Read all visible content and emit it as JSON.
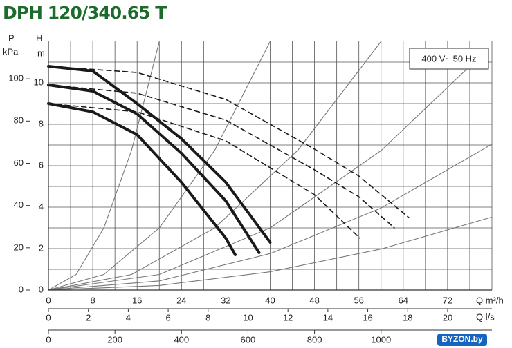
{
  "title": "DPH 120/340.65 T",
  "watermark": "BYZON.by",
  "chart_data": {
    "type": "line",
    "annotation": "400 V~ 50 Hz",
    "y_label": "H",
    "y_unit": "m",
    "y2_label": "P",
    "y2_unit": "kPa",
    "ylim": [
      0,
      12
    ],
    "yticks": [
      0,
      2,
      4,
      6,
      8,
      10
    ],
    "yminor": [
      1,
      3,
      5,
      7,
      9,
      11
    ],
    "y2lim": [
      0,
      117.7
    ],
    "y2ticks": [
      0,
      20,
      40,
      60,
      80,
      100
    ],
    "xlim": [
      0,
      80
    ],
    "xticks": [
      0,
      8,
      16,
      24,
      32,
      40,
      48,
      56,
      64,
      72
    ],
    "xminor": [
      4,
      12,
      20,
      28,
      36,
      44,
      52,
      60,
      68,
      76,
      80
    ],
    "x_label": "Q m³/h",
    "x2lim": [
      0,
      22.22
    ],
    "x2ticks": [
      0,
      2,
      4,
      6,
      8,
      10,
      12,
      14,
      16,
      18,
      20
    ],
    "x2_label": "Q l/s",
    "x3lim": [
      0,
      1333.3
    ],
    "x3ticks": [
      0,
      200,
      400,
      600,
      800,
      1000
    ],
    "grid": true,
    "series": [
      {
        "style": "solid",
        "color": "#1a1a1a",
        "x": [
          0,
          8,
          16,
          24,
          32,
          40
        ],
        "values": [
          10.8,
          10.57,
          9.0,
          7.3,
          5.2,
          2.3
        ]
      },
      {
        "style": "solid",
        "color": "#1a1a1a",
        "x": [
          0,
          8,
          16,
          24,
          32,
          38
        ],
        "values": [
          9.9,
          9.6,
          8.5,
          6.6,
          4.3,
          1.8
        ]
      },
      {
        "style": "solid",
        "color": "#1a1a1a",
        "x": [
          0,
          8,
          16,
          24,
          32,
          33.7
        ],
        "values": [
          9.0,
          8.6,
          7.5,
          5.2,
          2.5,
          1.7
        ]
      },
      {
        "style": "dashed",
        "color": "#1a1a1a",
        "x": [
          0,
          16,
          32,
          48,
          56,
          65
        ],
        "values": [
          10.8,
          10.5,
          9.2,
          6.8,
          5.5,
          3.5
        ]
      },
      {
        "style": "dashed",
        "color": "#1a1a1a",
        "x": [
          0,
          16,
          32,
          48,
          56,
          62.4
        ],
        "values": [
          9.9,
          9.5,
          8.2,
          5.8,
          4.5,
          3.0
        ]
      },
      {
        "style": "dashed",
        "color": "#1a1a1a",
        "x": [
          0,
          16,
          32,
          48,
          56.2
        ],
        "values": [
          9.0,
          8.6,
          7.2,
          4.6,
          2.5
        ]
      },
      {
        "style": "thin",
        "color": "#777777",
        "x": [
          0,
          5,
          10,
          15,
          20
        ],
        "values": [
          0,
          0.75,
          3,
          6.75,
          12
        ]
      },
      {
        "style": "thin",
        "color": "#777777",
        "x": [
          0,
          10,
          20,
          30,
          40
        ],
        "values": [
          0,
          0.75,
          3,
          6.75,
          12
        ]
      },
      {
        "style": "thin",
        "color": "#777777",
        "x": [
          0,
          15,
          30,
          45,
          60
        ],
        "values": [
          0,
          0.75,
          3,
          6.75,
          12
        ]
      },
      {
        "style": "thin",
        "color": "#777777",
        "x": [
          0,
          20,
          40,
          60,
          76
        ],
        "values": [
          0,
          0.75,
          3,
          6.73,
          10.8
        ]
      },
      {
        "style": "thin",
        "color": "#777777",
        "x": [
          0,
          20,
          40,
          60,
          80
        ],
        "values": [
          0,
          0.44,
          1.76,
          3.96,
          7.04
        ]
      },
      {
        "style": "thin",
        "color": "#777777",
        "x": [
          0,
          20,
          40,
          60,
          80
        ],
        "values": [
          0,
          0.22,
          0.88,
          1.98,
          3.52
        ]
      }
    ]
  }
}
